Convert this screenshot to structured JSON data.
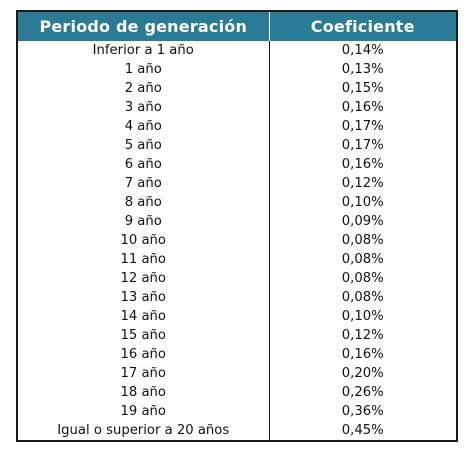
{
  "table": {
    "headers": {
      "period": "Periodo de generación",
      "coefficient": "Coeficiente"
    },
    "rows": [
      {
        "period": "Inferior a 1 año",
        "coefficient": "0,14%"
      },
      {
        "period": "1 año",
        "coefficient": "0,13%"
      },
      {
        "period": "2 año",
        "coefficient": "0,15%"
      },
      {
        "period": "3 año",
        "coefficient": "0,16%"
      },
      {
        "period": "4 año",
        "coefficient": "0,17%"
      },
      {
        "period": "5 año",
        "coefficient": "0,17%"
      },
      {
        "period": "6 año",
        "coefficient": "0,16%"
      },
      {
        "period": "7 año",
        "coefficient": "0,12%"
      },
      {
        "period": "8 año",
        "coefficient": "0,10%"
      },
      {
        "period": "9 año",
        "coefficient": "0,09%"
      },
      {
        "period": "10 año",
        "coefficient": "0,08%"
      },
      {
        "period": "11 año",
        "coefficient": "0,08%"
      },
      {
        "period": "12 año",
        "coefficient": "0,08%"
      },
      {
        "period": "13 año",
        "coefficient": "0,08%"
      },
      {
        "period": "14 año",
        "coefficient": "0,10%"
      },
      {
        "period": "15 año",
        "coefficient": "0,12%"
      },
      {
        "period": "16 año",
        "coefficient": "0,16%"
      },
      {
        "period": "17 año",
        "coefficient": "0,20%"
      },
      {
        "period": "18 año",
        "coefficient": "0,26%"
      },
      {
        "period": "19 año",
        "coefficient": "0,36%"
      },
      {
        "period": "Igual o superior a 20 años",
        "coefficient": "0,45%"
      }
    ]
  },
  "colors": {
    "header_background": "#2a7b96",
    "header_text": "#ffffff",
    "border": "#1a1a1a"
  }
}
